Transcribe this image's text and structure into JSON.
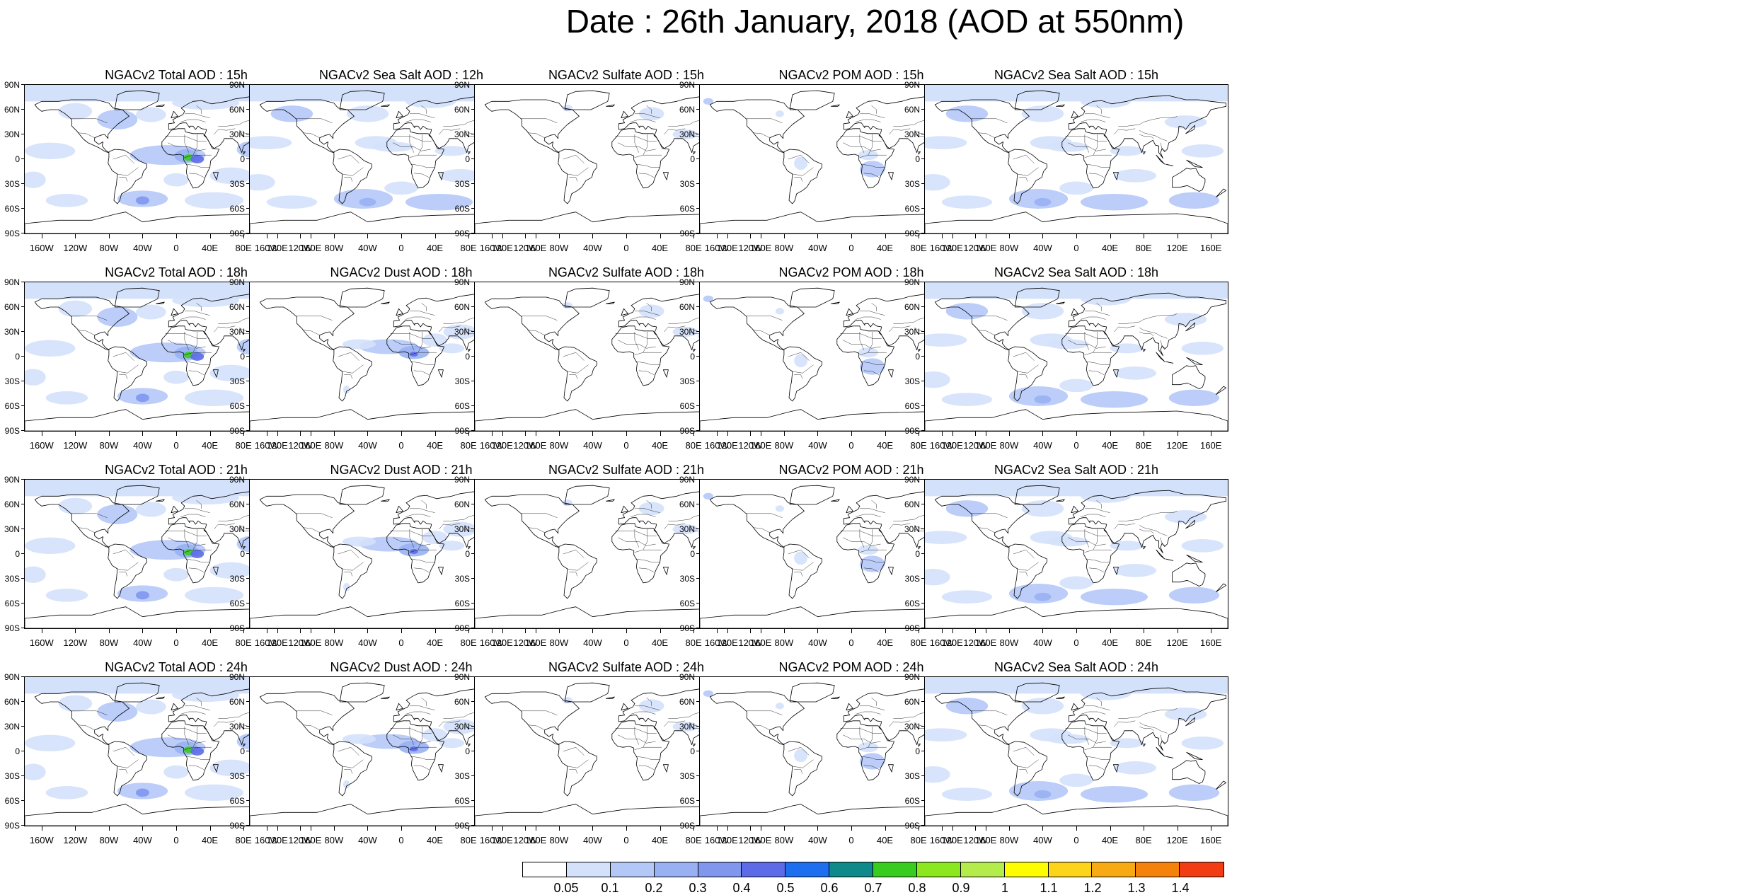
{
  "title": "Date : 26th January, 2018 (AOD at 550nm)",
  "lat_labels": [
    "90N",
    "60N",
    "30N",
    "0",
    "30S",
    "60S",
    "90S"
  ],
  "lon_labels": [
    "160W",
    "120W",
    "80W",
    "40W",
    "0",
    "40E",
    "80E",
    "120E",
    "160E"
  ],
  "panel_titles": [
    [
      "NGACv2 Total AOD : 15h",
      "NGACv2 Sea Salt  AOD : 12h",
      "NGACv2 Sulfate AOD : 15h",
      "NGACv2 POM AOD : 15h",
      "NGACv2 Sea Salt  AOD : 15h"
    ],
    [
      "NGACv2 Total AOD : 18h",
      "NGACv2 Dust AOD : 18h",
      "NGACv2 Sulfate AOD : 18h",
      "NGACv2 POM AOD : 18h",
      "NGACv2 Sea Salt  AOD : 18h"
    ],
    [
      "NGACv2 Total AOD : 21h",
      "NGACv2 Dust AOD : 21h",
      "NGACv2 Sulfate AOD : 21h",
      "NGACv2 POM AOD : 21h",
      "NGACv2 Sea Salt  AOD : 21h"
    ],
    [
      "NGACv2 Total AOD : 24h",
      "NGACv2 Dust AOD : 24h",
      "NGACv2 Sulfate AOD : 24h",
      "NGACv2 POM AOD : 24h",
      "NGACv2 Sea Salt  AOD : 24h"
    ]
  ],
  "colorbar": {
    "labels": [
      "0.05",
      "0.1",
      "0.2",
      "0.3",
      "0.4",
      "0.5",
      "0.6",
      "0.7",
      "0.8",
      "0.9",
      "1",
      "1.1",
      "1.2",
      "1.3",
      "1.4"
    ],
    "colors": [
      "#ffffff",
      "#d4e1fb",
      "#b4c8f7",
      "#99b1f2",
      "#8197ee",
      "#5d6be8",
      "#1e6ef0",
      "#0f8a8a",
      "#38cc1f",
      "#8ce81e",
      "#b4ec4c",
      "#fdfd00",
      "#fcd41a",
      "#f7aa14",
      "#f5820a",
      "#f23c14"
    ]
  },
  "colors": {
    "continents": "#000000",
    "sea_ice_shading": "#d4e1fb"
  }
}
